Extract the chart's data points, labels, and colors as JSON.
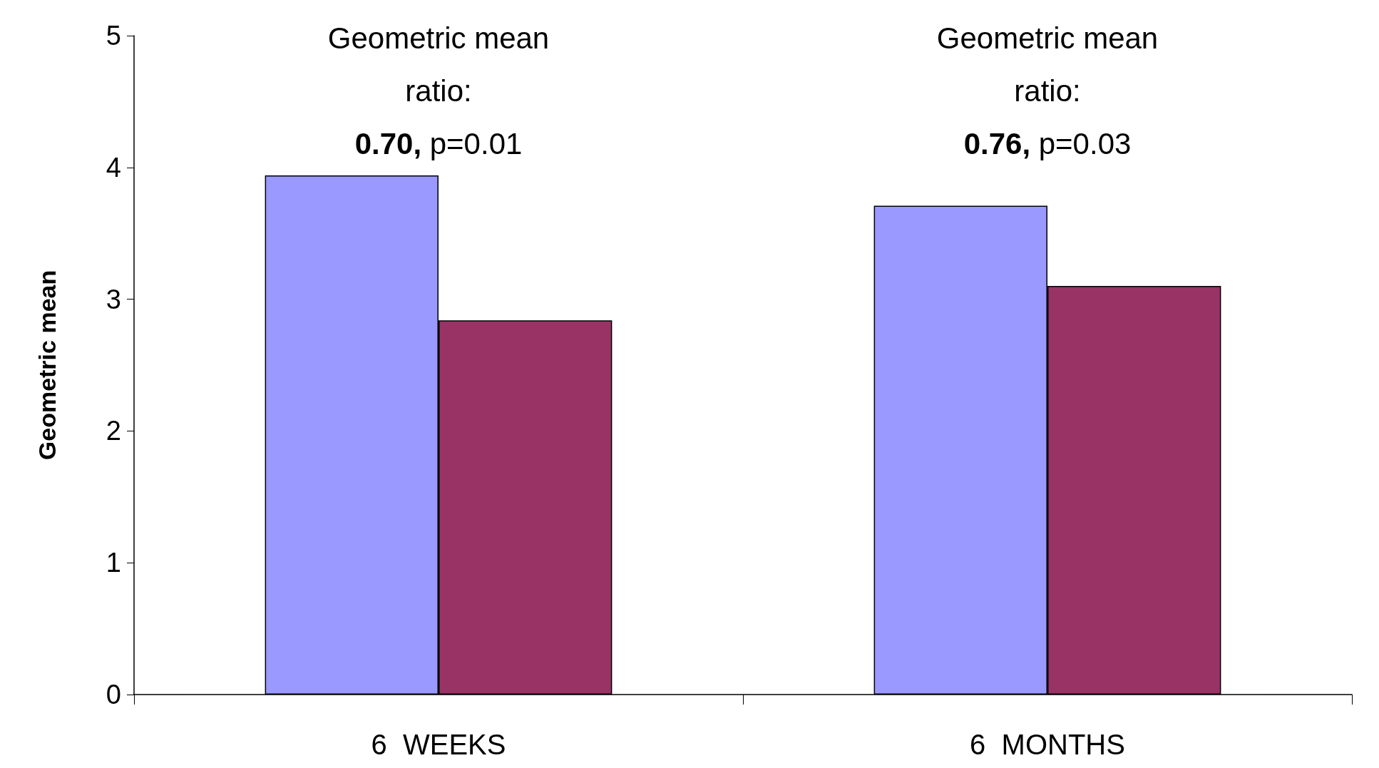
{
  "chart_data": {
    "type": "bar",
    "ylabel": "Geometric mean",
    "categories": [
      "6  WEEKS",
      "6  MONTHS"
    ],
    "series": [
      {
        "color": "#9999ff",
        "values": [
          3.94,
          3.71
        ]
      },
      {
        "color": "#993366",
        "values": [
          2.84,
          3.1
        ]
      }
    ],
    "ylim": [
      0,
      5
    ],
    "yticks": [
      0,
      1,
      2,
      3,
      4,
      5
    ],
    "grid": false,
    "annotations": [
      "Geometric mean\nratio:\n0.70, p=0.01",
      "Geometric mean\nratio:\n0.76, p=0.03"
    ]
  }
}
